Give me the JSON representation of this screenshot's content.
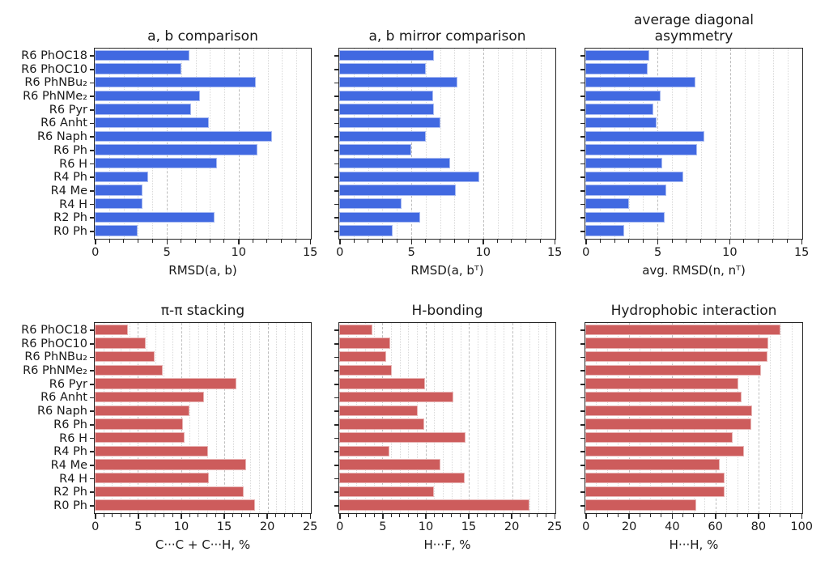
{
  "figure": {
    "accent_colors": {
      "top_row_bars": "#4169e1",
      "bottom_row_bars": "#cd5c5c",
      "axis": "#262626"
    },
    "categories": [
      "R6 PhOC18",
      "R6 PhOC10",
      "R6 PhNBu₂",
      "R6 PhNMe₂",
      "R6 Pyr",
      "R6 Anht",
      "R6 Naph",
      "R6 Ph",
      "R6 H",
      "R4 Ph",
      "R4 Me",
      "R4 H",
      "R2 Ph",
      "R0 Ph"
    ]
  },
  "chart_data": [
    {
      "type": "bar",
      "orientation": "horizontal",
      "title": "a, b comparison",
      "xlabel": "RMSD(a, b)",
      "xlim": [
        0,
        15
      ],
      "major_ticks": [
        0,
        5,
        10,
        15
      ],
      "minor_step": 1,
      "grid": "major-dashed minor-dotted",
      "legend": "none",
      "color": "#4169e1",
      "categories": [
        "R6 PhOC18",
        "R6 PhOC10",
        "R6 PhNBu₂",
        "R6 PhNMe₂",
        "R6 Pyr",
        "R6 Anht",
        "R6 Naph",
        "R6 Ph",
        "R6 H",
        "R4 Ph",
        "R4 Me",
        "R4 H",
        "R2 Ph",
        "R0 Ph"
      ],
      "values": [
        6.6,
        6.0,
        11.2,
        7.3,
        6.7,
        7.9,
        12.3,
        11.3,
        8.5,
        3.7,
        3.3,
        3.3,
        8.3,
        3.0
      ],
      "show_category_labels": true
    },
    {
      "type": "bar",
      "orientation": "horizontal",
      "title": "a, b mirror comparison",
      "xlabel": "RMSD(a, bᵀ)",
      "xlim": [
        0,
        15
      ],
      "major_ticks": [
        0,
        5,
        10,
        15
      ],
      "minor_step": 1,
      "grid": "major-dashed minor-dotted",
      "legend": "none",
      "color": "#4169e1",
      "categories": [
        "R6 PhOC18",
        "R6 PhOC10",
        "R6 PhNBu₂",
        "R6 PhNMe₂",
        "R6 Pyr",
        "R6 Anht",
        "R6 Naph",
        "R6 Ph",
        "R6 H",
        "R4 Ph",
        "R4 Me",
        "R4 H",
        "R2 Ph",
        "R0 Ph"
      ],
      "values": [
        6.6,
        6.0,
        8.2,
        6.5,
        6.6,
        7.0,
        6.0,
        5.0,
        7.7,
        9.7,
        8.1,
        4.3,
        5.6,
        3.7
      ],
      "show_category_labels": false
    },
    {
      "type": "bar",
      "orientation": "horizontal",
      "title": "average diagonal\nasymmetry",
      "xlabel": "avg. RMSD(n, nᵀ)",
      "xlim": [
        0,
        15
      ],
      "major_ticks": [
        0,
        5,
        10,
        15
      ],
      "minor_step": 1,
      "grid": "major-dashed minor-dotted",
      "legend": "none",
      "color": "#4169e1",
      "categories": [
        "R6 PhOC18",
        "R6 PhOC10",
        "R6 PhNBu₂",
        "R6 PhNMe₂",
        "R6 Pyr",
        "R6 Anht",
        "R6 Naph",
        "R6 Ph",
        "R6 H",
        "R4 Ph",
        "R4 Me",
        "R4 H",
        "R2 Ph",
        "R0 Ph"
      ],
      "values": [
        4.4,
        4.3,
        7.6,
        5.2,
        4.7,
        4.9,
        8.2,
        7.7,
        5.3,
        6.8,
        5.6,
        3.0,
        5.5,
        2.7
      ],
      "show_category_labels": false
    },
    {
      "type": "bar",
      "orientation": "horizontal",
      "title": "π-π stacking",
      "xlabel": "C···C + C···H, %",
      "xlim": [
        0,
        25
      ],
      "major_ticks": [
        0,
        5,
        10,
        15,
        20,
        25
      ],
      "minor_step": 1,
      "grid": "major-dashed minor-dotted",
      "legend": "none",
      "color": "#cd5c5c",
      "categories": [
        "R6 PhOC18",
        "R6 PhOC10",
        "R6 PhNBu₂",
        "R6 PhNMe₂",
        "R6 Pyr",
        "R6 Anht",
        "R6 Naph",
        "R6 Ph",
        "R6 H",
        "R4 Ph",
        "R4 Me",
        "R4 H",
        "R2 Ph",
        "R0 Ph"
      ],
      "values": [
        3.8,
        5.9,
        6.9,
        7.9,
        16.4,
        12.6,
        11.0,
        10.2,
        10.4,
        13.1,
        17.5,
        13.2,
        17.2,
        18.5
      ],
      "show_category_labels": true
    },
    {
      "type": "bar",
      "orientation": "horizontal",
      "title": "H-bonding",
      "xlabel": "H···F, %",
      "xlim": [
        0,
        25
      ],
      "major_ticks": [
        0,
        5,
        10,
        15,
        20,
        25
      ],
      "minor_step": 1,
      "grid": "major-dashed minor-dotted",
      "legend": "none",
      "color": "#cd5c5c",
      "categories": [
        "R6 PhOC18",
        "R6 PhOC10",
        "R6 PhNBu₂",
        "R6 PhNMe₂",
        "R6 Pyr",
        "R6 Anht",
        "R6 Naph",
        "R6 Ph",
        "R6 H",
        "R4 Ph",
        "R4 Me",
        "R4 H",
        "R2 Ph",
        "R0 Ph"
      ],
      "values": [
        3.8,
        5.9,
        5.4,
        6.1,
        9.9,
        13.2,
        9.1,
        9.8,
        14.6,
        5.8,
        11.7,
        14.5,
        11.0,
        22.0
      ],
      "show_category_labels": false
    },
    {
      "type": "bar",
      "orientation": "horizontal",
      "title": "Hydrophobic interaction",
      "xlabel": "H···H, %",
      "xlim": [
        0,
        100
      ],
      "major_ticks": [
        0,
        20,
        40,
        60,
        80,
        100
      ],
      "minor_step": 5,
      "grid": "major-dashed minor-dotted",
      "legend": "none",
      "color": "#cd5c5c",
      "categories": [
        "R6 PhOC18",
        "R6 PhOC10",
        "R6 PhNBu₂",
        "R6 PhNMe₂",
        "R6 Pyr",
        "R6 Anht",
        "R6 Naph",
        "R6 Ph",
        "R6 H",
        "R4 Ph",
        "R4 Me",
        "R4 H",
        "R2 Ph",
        "R0 Ph"
      ],
      "values": [
        90,
        84.5,
        84,
        81,
        70.5,
        72,
        77,
        76.5,
        68,
        73,
        62,
        64,
        64,
        51
      ],
      "show_category_labels": false
    }
  ]
}
